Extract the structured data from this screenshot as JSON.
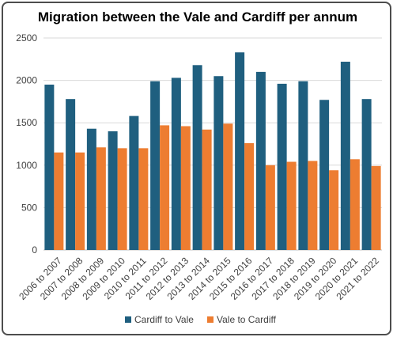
{
  "chart_data": {
    "type": "bar",
    "title": "Migration between the Vale and Cardiff per annum",
    "xlabel": "",
    "ylabel": "",
    "ylim": [
      0,
      2500
    ],
    "yticks": [
      0,
      500,
      1000,
      1500,
      2000,
      2500
    ],
    "grid": true,
    "legend_position": "bottom",
    "categories": [
      "2006 to 2007",
      "2007 to 2008",
      "2008 to 2009",
      "2009 to 2010",
      "2010 to 2011",
      "2011 to 2012",
      "2012 to 2013",
      "2013 to 2014",
      "2014 to 2015",
      "2015 to 2016",
      "2016 to 2017",
      "2017 to 2018",
      "2018 to 2019",
      "2019 to 2020",
      "2020 to 2021",
      "2021 to 2022"
    ],
    "series": [
      {
        "name": "Cardiff to Vale",
        "color": "#1f5f7f",
        "values": [
          1950,
          1780,
          1430,
          1400,
          1580,
          1990,
          2030,
          2180,
          2050,
          2330,
          2100,
          1960,
          1990,
          1770,
          2220,
          1780
        ]
      },
      {
        "name": "Vale to Cardiff",
        "color": "#ed7d31",
        "values": [
          1150,
          1150,
          1210,
          1200,
          1200,
          1470,
          1460,
          1420,
          1490,
          1260,
          1000,
          1040,
          1050,
          940,
          1070,
          990
        ]
      }
    ]
  }
}
